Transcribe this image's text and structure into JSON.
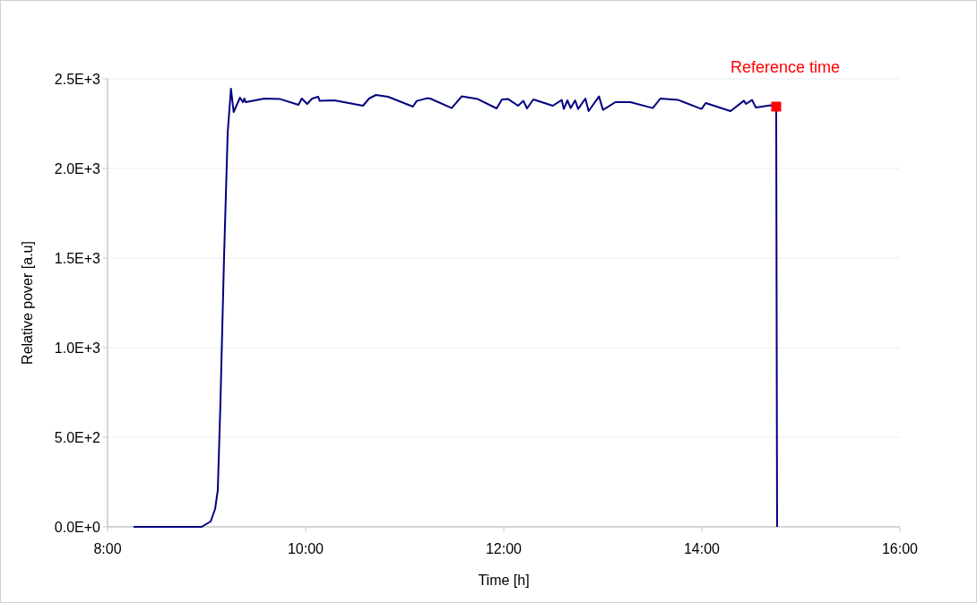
{
  "chart_data": {
    "type": "line",
    "xlabel": "Time [h]",
    "ylabel": "Relative pover [a.u]",
    "xlim": [
      8,
      16
    ],
    "xticks": [
      {
        "value": 8,
        "label": "8:00"
      },
      {
        "value": 10,
        "label": "10:00"
      },
      {
        "value": 12,
        "label": "12:00"
      },
      {
        "value": 14,
        "label": "14:00"
      },
      {
        "value": 16,
        "label": "16:00"
      }
    ],
    "ylim": [
      0,
      2500
    ],
    "yticks": [
      {
        "value": 0,
        "label": "0.0E+0"
      },
      {
        "value": 500,
        "label": "5.0E+2"
      },
      {
        "value": 1000,
        "label": "1.0E+3"
      },
      {
        "value": 1500,
        "label": "1.5E+3"
      },
      {
        "value": 2000,
        "label": "2.0E+3"
      },
      {
        "value": 2500,
        "label": "2.5E+3"
      }
    ],
    "grid": "y",
    "marker": "none",
    "line_style": "solid",
    "series": [
      {
        "color": "#000080",
        "x": [
          8.262,
          8.95,
          9.041,
          9.086,
          9.113,
          9.14,
          9.176,
          9.213,
          9.246,
          9.273,
          9.337,
          9.367,
          9.382,
          9.394,
          9.584,
          9.744,
          9.928,
          9.961,
          10.015,
          10.066,
          10.127,
          10.142,
          10.29,
          10.579,
          10.64,
          10.709,
          10.833,
          11.083,
          11.122,
          11.228,
          11.258,
          11.475,
          11.575,
          11.738,
          11.928,
          11.982,
          12.045,
          12.145,
          12.199,
          12.235,
          12.299,
          12.495,
          12.586,
          12.606,
          12.643,
          12.676,
          12.721,
          12.751,
          12.824,
          12.857,
          12.962,
          13.002,
          13.128,
          13.279,
          13.505,
          13.581,
          13.762,
          13.997,
          14.039,
          14.29,
          14.425,
          14.446,
          14.507,
          14.546,
          14.697,
          14.751,
          14.76
        ],
        "values": [
          0,
          0,
          30,
          100,
          205,
          700,
          1500,
          2200,
          2445,
          2315,
          2395,
          2370,
          2390,
          2370,
          2390,
          2387,
          2355,
          2390,
          2360,
          2390,
          2400,
          2377,
          2380,
          2350,
          2390,
          2410,
          2400,
          2345,
          2377,
          2392,
          2390,
          2337,
          2402,
          2387,
          2335,
          2385,
          2387,
          2350,
          2377,
          2335,
          2385,
          2350,
          2382,
          2332,
          2380,
          2337,
          2380,
          2332,
          2390,
          2320,
          2402,
          2327,
          2370,
          2370,
          2337,
          2390,
          2382,
          2332,
          2365,
          2320,
          2378,
          2360,
          2382,
          2340,
          2352,
          2345,
          0
        ]
      },
      {
        "name": "Reference time",
        "type": "scatter",
        "marker": "square",
        "color": "#ff0000",
        "x": [
          14.751
        ],
        "values": [
          2345
        ]
      }
    ]
  }
}
